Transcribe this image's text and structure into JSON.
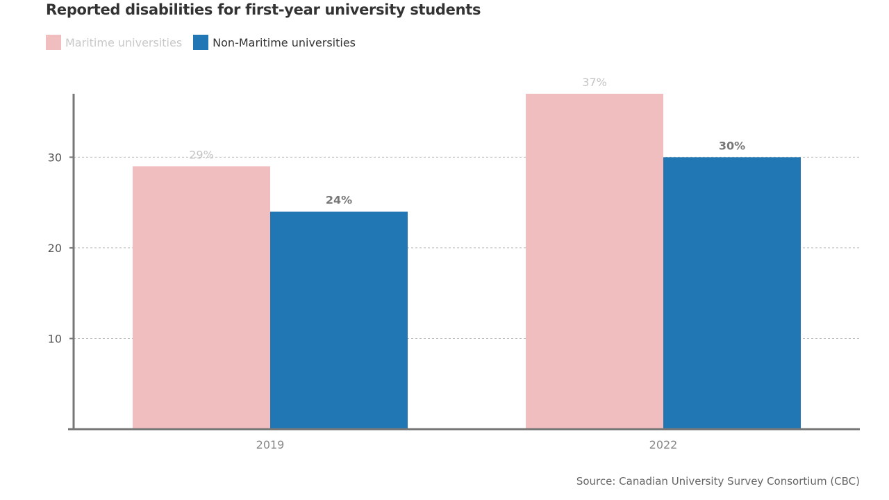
{
  "chart_data": {
    "type": "bar",
    "title": "Reported disabilities for first-year university students",
    "categories": [
      "2019",
      "2022"
    ],
    "series": [
      {
        "name": "Maritime universities",
        "values": [
          29,
          37
        ],
        "labels": [
          "29%",
          "37%"
        ],
        "color": "#f0bebf",
        "label_color": "#c4c4c4",
        "legend_text_color": "#c8c8c8"
      },
      {
        "name": "Non-Maritime universities",
        "values": [
          24,
          30
        ],
        "labels": [
          "24%",
          "30%"
        ],
        "color": "#2077b3",
        "label_color": "#777777",
        "legend_text_color": "#333333"
      }
    ],
    "xlabel": "",
    "ylabel": "",
    "ylim": [
      0,
      37
    ],
    "yticks": [
      10,
      20,
      30
    ],
    "ytick_labels": [
      "10",
      "20",
      "30"
    ],
    "grid": true,
    "legend": "top-left",
    "source": "Source: Canadian University Survey Consortium (CBC)"
  }
}
